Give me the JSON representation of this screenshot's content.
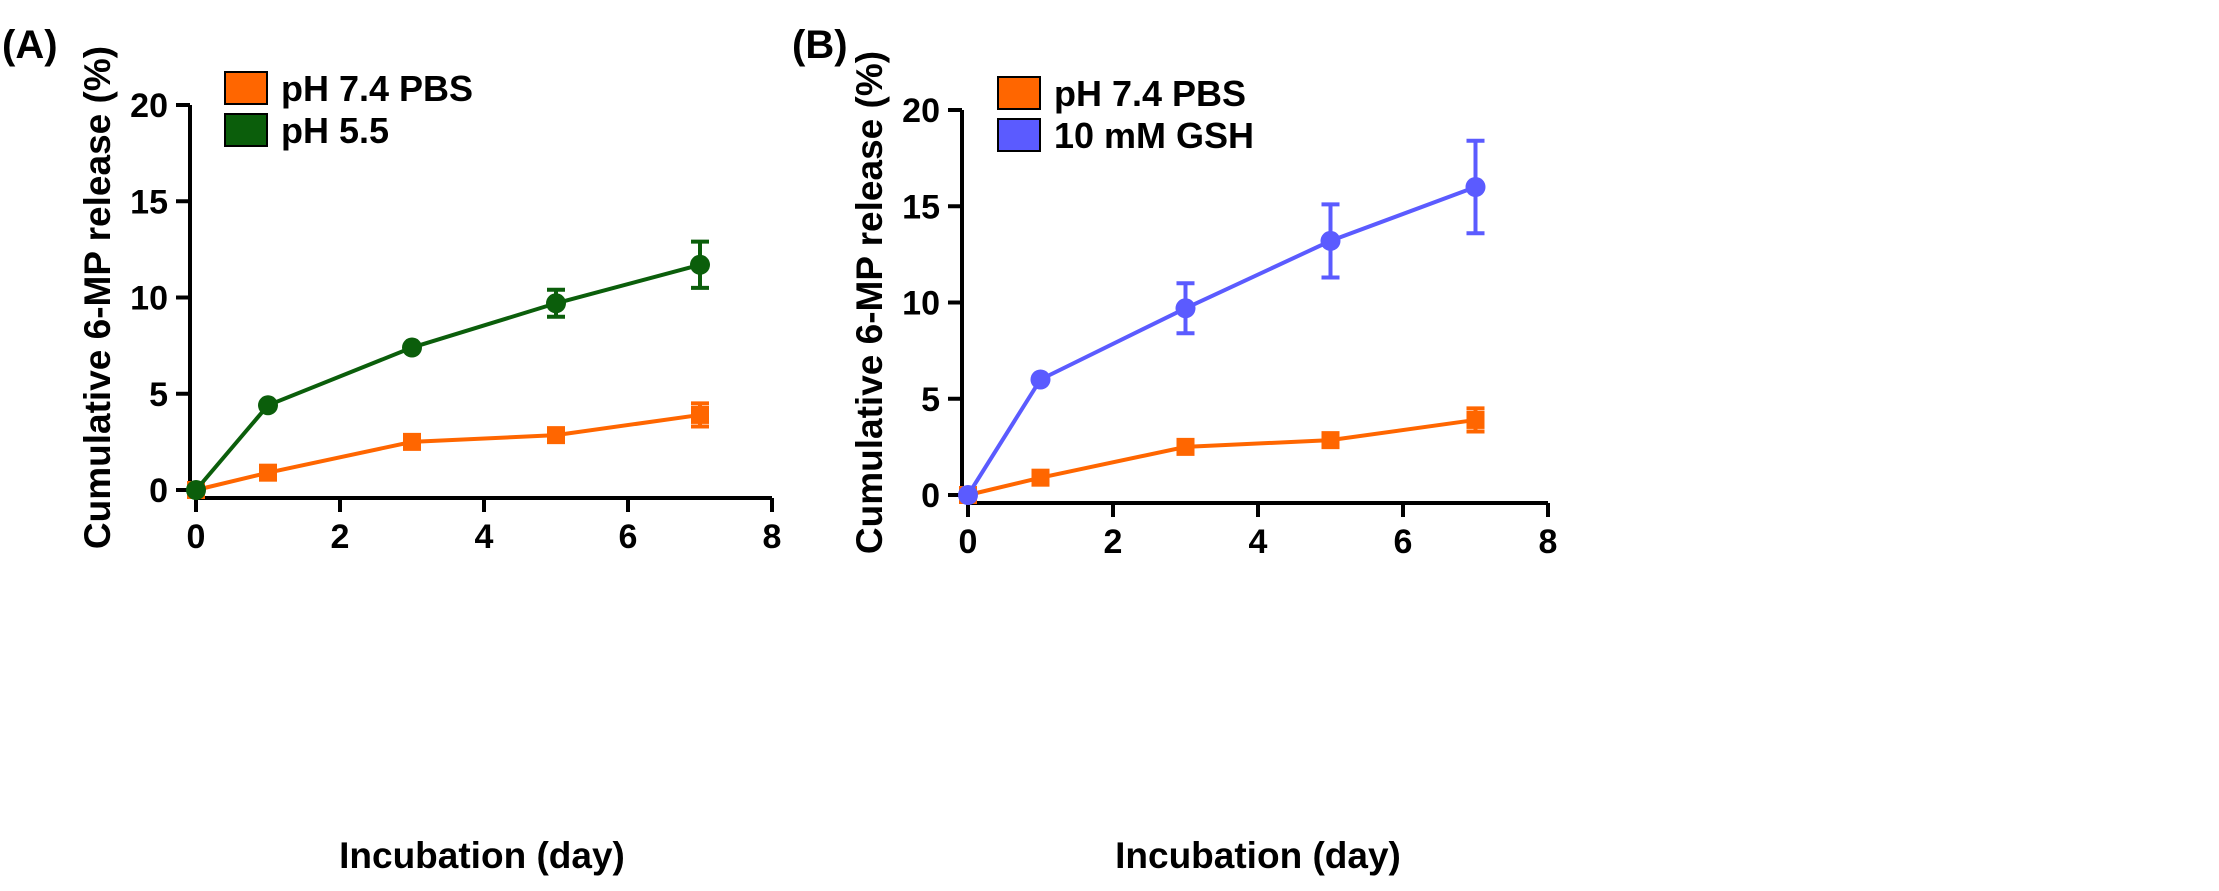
{
  "chart_data": [
    {
      "type": "line",
      "panel_label": "(A)",
      "xlabel": "Incubation (day)",
      "ylabel": "Cumulative 6-MP release (%)",
      "xlim": [
        0,
        8
      ],
      "ylim": [
        0,
        20
      ],
      "xticks": [
        0,
        2,
        4,
        6,
        8
      ],
      "yticks": [
        0,
        5,
        10,
        15,
        20
      ],
      "legend_position": "top-left",
      "series": [
        {
          "name": "pH 7.4 PBS",
          "color": "#FF6600",
          "marker": "square",
          "x": [
            0,
            1,
            3,
            5,
            7
          ],
          "y": [
            0,
            0.9,
            2.5,
            2.85,
            3.9
          ],
          "err": [
            0,
            0.2,
            0.25,
            0.25,
            0.6
          ]
        },
        {
          "name": "pH 5.5",
          "color": "#0B5E0B",
          "marker": "circle",
          "x": [
            0,
            1,
            3,
            5,
            7
          ],
          "y": [
            0,
            4.4,
            7.4,
            9.7,
            11.7
          ],
          "err": [
            0,
            0.2,
            0.2,
            0.7,
            1.2
          ]
        }
      ]
    },
    {
      "type": "line",
      "panel_label": "(B)",
      "xlabel": "Incubation (day)",
      "ylabel": "Cumulative 6-MP release (%)",
      "xlim": [
        0,
        8
      ],
      "ylim": [
        0,
        20
      ],
      "xticks": [
        0,
        2,
        4,
        6,
        8
      ],
      "yticks": [
        0,
        5,
        10,
        15,
        20
      ],
      "legend_position": "top-left",
      "series": [
        {
          "name": "pH 7.4 PBS",
          "color": "#FF6600",
          "marker": "square",
          "x": [
            0,
            1,
            3,
            5,
            7
          ],
          "y": [
            0,
            0.9,
            2.5,
            2.85,
            3.9
          ],
          "err": [
            0,
            0.2,
            0.25,
            0.25,
            0.6
          ]
        },
        {
          "name": "10 mM GSH",
          "color": "#5B5BFF",
          "marker": "circle",
          "x": [
            0,
            1,
            3,
            5,
            7
          ],
          "y": [
            0,
            6.0,
            9.7,
            13.2,
            16.0
          ],
          "err": [
            0,
            0.2,
            1.3,
            1.9,
            2.4
          ]
        }
      ]
    }
  ]
}
